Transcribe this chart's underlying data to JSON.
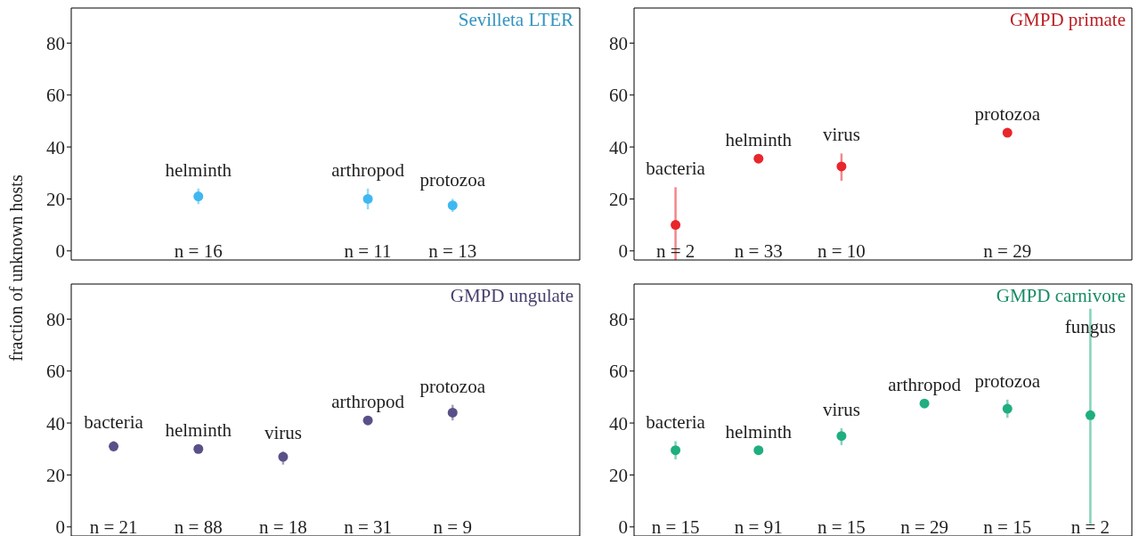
{
  "chart_data": [
    {
      "type": "scatter",
      "title": "Sevilleta LTER",
      "ylabel": "fraction of unknown hosts",
      "categories": [
        null,
        "helminth",
        null,
        "arthropod",
        "protozoa",
        null
      ],
      "ylim": [
        -3.5,
        93.5
      ],
      "yticks": [
        0,
        20,
        40,
        60,
        80
      ],
      "tick_labels": "y",
      "grid": false,
      "legend": false,
      "marker": "circle",
      "series": [
        {
          "color": "#3fb8f0",
          "values": [
            null,
            21,
            null,
            20,
            17.5,
            null
          ],
          "errors": [
            null,
            [
              18,
              24
            ],
            null,
            [
              16,
              24
            ],
            [
              15,
              20
            ],
            null
          ]
        }
      ],
      "annotations": [
        "n = 16",
        "n = 11",
        "n = 13"
      ]
    },
    {
      "type": "scatter",
      "title": "GMPD primate",
      "categories": [
        "bacteria",
        "helminth",
        "virus",
        null,
        "protozoa",
        null
      ],
      "ylim": [
        -3.5,
        93.5
      ],
      "yticks": [
        0,
        20,
        40,
        60,
        80
      ],
      "tick_labels": "y",
      "grid": false,
      "legend": false,
      "marker": "circle",
      "series": [
        {
          "color": "#e8262b",
          "values": [
            10,
            35.5,
            32.5,
            null,
            45.5,
            null
          ],
          "errors": [
            [
              -3.5,
              24.5
            ],
            null,
            [
              27,
              37.5
            ],
            null,
            null,
            null
          ]
        }
      ],
      "annotations": [
        "n = 2",
        "n = 33",
        "n = 10",
        "n = 29"
      ]
    },
    {
      "type": "scatter",
      "title": "GMPD ungulate",
      "categories": [
        "bacteria",
        "helminth",
        "virus",
        "arthropod",
        "protozoa",
        null
      ],
      "ylim": [
        -3.5,
        93.5
      ],
      "yticks": [
        0,
        20,
        40,
        60,
        80
      ],
      "tick_labels": "y",
      "grid": false,
      "legend": false,
      "marker": "circle",
      "series": [
        {
          "color": "#5a5088",
          "values": [
            31,
            30,
            27,
            41,
            44,
            null
          ],
          "errors": [
            [
              29,
              33
            ],
            null,
            [
              24,
              29
            ],
            null,
            [
              41,
              47
            ],
            null
          ]
        }
      ],
      "annotations": [
        "n = 21",
        "n = 88",
        "n = 18",
        "n = 31",
        "n = 9"
      ]
    },
    {
      "type": "scatter",
      "title": "GMPD carnivore",
      "categories": [
        "bacteria",
        "helminth",
        "virus",
        "arthropod",
        "protozoa",
        "fungus"
      ],
      "ylim": [
        -3.5,
        93.5
      ],
      "yticks": [
        0,
        20,
        40,
        60,
        80
      ],
      "tick_labels": "y",
      "grid": false,
      "legend": false,
      "marker": "circle",
      "series": [
        {
          "color": "#1fae80",
          "values": [
            29.5,
            29.5,
            35,
            47.5,
            45.5,
            43
          ],
          "errors": [
            [
              26,
              33
            ],
            null,
            [
              31.5,
              38
            ],
            null,
            [
              42,
              49
            ],
            [
              1,
              84
            ]
          ]
        }
      ],
      "annotations": [
        "n = 15",
        "n = 91",
        "n = 15",
        "n = 29",
        "n = 15",
        "n = 2"
      ]
    }
  ]
}
